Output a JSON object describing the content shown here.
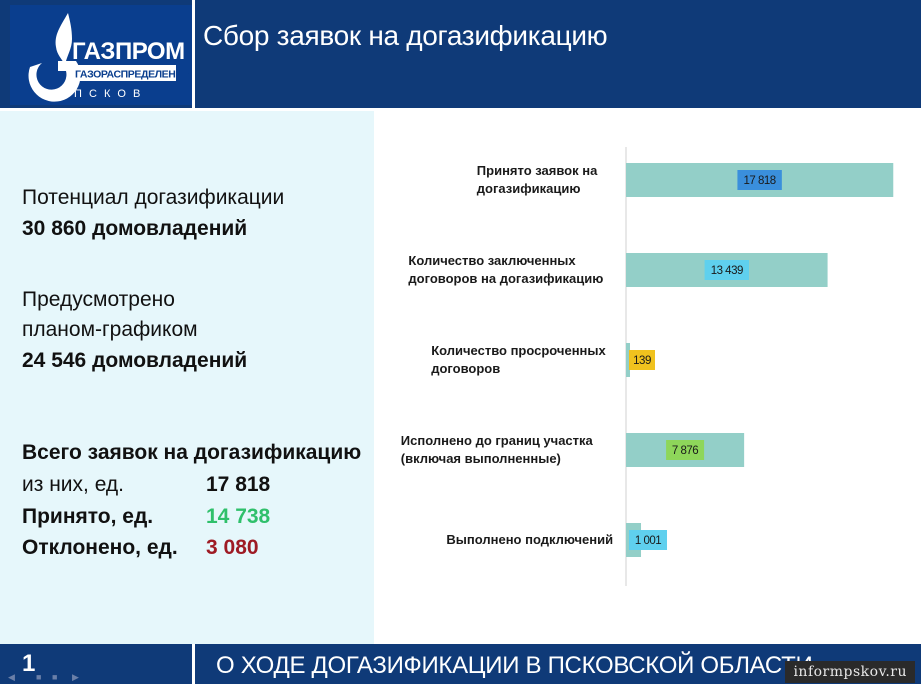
{
  "header": {
    "title": "Сбор заявок на догазификацию",
    "logo": {
      "brand": "ГАЗПРОМ",
      "sub": "ГАЗОРАСПРЕДЕЛЕНИЕ",
      "city": "П С К О В"
    }
  },
  "left": {
    "potential_label": "Потенциал догазификации",
    "potential_value": "30 860 домовладений",
    "planned_line1": "Предусмотрено",
    "planned_line2": "планом-графиком",
    "planned_value": "24 546 домовладений",
    "total_label": "Всего заявок на догазификацию",
    "rows": [
      {
        "label": "из них, ед.",
        "value": "17 818"
      },
      {
        "label": "Принято, ед.",
        "value": "14 738"
      },
      {
        "label": "Отклонено, ед.",
        "value": "3 080"
      }
    ]
  },
  "chart_data": {
    "type": "bar",
    "orientation": "horizontal",
    "categories": [
      [
        "Принято заявок на",
        "догазификацию"
      ],
      [
        "Количество заключенных",
        "договоров на догазификацию"
      ],
      [
        "Количество просроченных",
        "договоров"
      ],
      [
        "Исполнено до границ участка",
        "(включая выполненные)"
      ],
      [
        "Выполнено подключений"
      ]
    ],
    "values": [
      17818,
      13439,
      139,
      7876,
      1001
    ],
    "value_labels": [
      "17 818",
      "13 439",
      "139",
      "7 876",
      "1 001"
    ],
    "bar_color": "#93cfc8",
    "label_colors": [
      "#3a8fdc",
      "#5fd0ee",
      "#f0c21e",
      "#8ed65a",
      "#5fd0ee"
    ],
    "xlim": [
      0,
      20000
    ],
    "grid": false
  },
  "footer": {
    "page_number": "1",
    "title": "О ХОДЕ ДОГАЗИФИКАЦИИ В ПСКОВСКОЙ ОБЛАСТИ",
    "watermark": "informpskov.ru"
  }
}
